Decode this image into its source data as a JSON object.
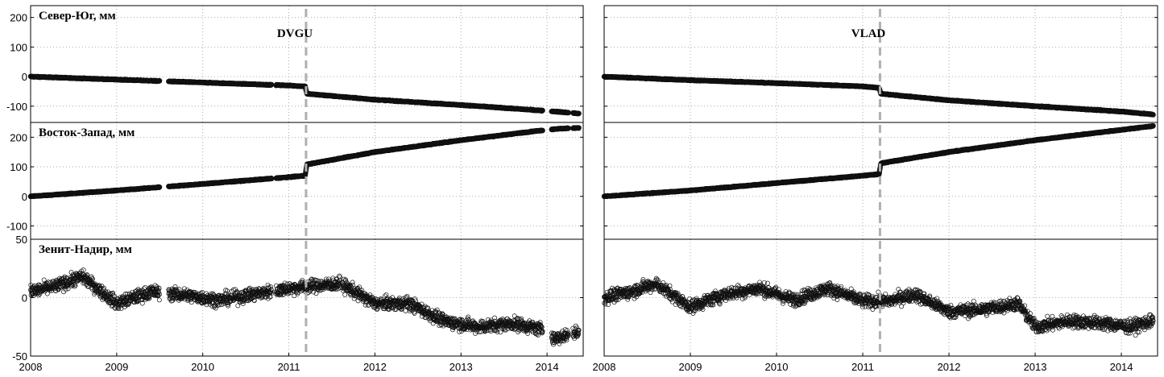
{
  "chart_data": {
    "type": "scatter",
    "x_ticks": [
      "2008",
      "2009",
      "2010",
      "2011",
      "2012",
      "2013",
      "2014"
    ],
    "xlim": [
      2008.0,
      2014.42
    ],
    "event_date": 2011.2,
    "panels": [
      {
        "key": "ns",
        "ylabel": "Север-Юг, мм",
        "yticks": [
          "200",
          "100",
          "0",
          "-100"
        ],
        "ylim": [
          -155,
          240
        ]
      },
      {
        "key": "ew",
        "ylabel": "Восток-Запад, мм",
        "yticks": [
          "200",
          "100",
          "0",
          "-100"
        ],
        "ylim": [
          -145,
          250
        ]
      },
      {
        "key": "up",
        "ylabel": "Зенит-Надир, мм",
        "yticks": [
          "50",
          "0",
          "-50"
        ],
        "ylim": [
          -50,
          50
        ]
      }
    ],
    "stations": [
      {
        "name": "DVGU",
        "ns": [
          [
            2008.0,
            0
          ],
          [
            2009.0,
            -10
          ],
          [
            2010.0,
            -20
          ],
          [
            2011.0,
            -30
          ],
          [
            2011.19,
            -33
          ],
          [
            2011.21,
            -58
          ],
          [
            2012.0,
            -78
          ],
          [
            2013.0,
            -96
          ],
          [
            2013.9,
            -114
          ],
          [
            2014.1,
            -118
          ],
          [
            2014.37,
            -125
          ]
        ],
        "ew": [
          [
            2008.0,
            0
          ],
          [
            2009.0,
            20
          ],
          [
            2010.0,
            42
          ],
          [
            2011.0,
            65
          ],
          [
            2011.19,
            70
          ],
          [
            2011.21,
            108
          ],
          [
            2012.0,
            150
          ],
          [
            2013.0,
            190
          ],
          [
            2013.9,
            222
          ],
          [
            2014.1,
            228
          ],
          [
            2014.37,
            232
          ]
        ],
        "up": [
          [
            2008.0,
            5
          ],
          [
            2008.3,
            10
          ],
          [
            2008.6,
            18
          ],
          [
            2009.0,
            -5
          ],
          [
            2009.4,
            5
          ],
          [
            2009.8,
            2
          ],
          [
            2010.2,
            -2
          ],
          [
            2010.6,
            3
          ],
          [
            2011.0,
            8
          ],
          [
            2011.3,
            10
          ],
          [
            2011.6,
            12
          ],
          [
            2012.0,
            -5
          ],
          [
            2012.4,
            -5
          ],
          [
            2012.8,
            -20
          ],
          [
            2013.2,
            -25
          ],
          [
            2013.6,
            -22
          ],
          [
            2014.0,
            -28
          ],
          [
            2014.1,
            -35
          ],
          [
            2014.3,
            -30
          ]
        ],
        "gaps": [
          [
            2009.5,
            2009.6
          ],
          [
            2010.8,
            2010.85
          ],
          [
            2011.6,
            2011.62
          ],
          [
            2013.95,
            2014.05
          ],
          [
            2014.25,
            2014.3
          ]
        ]
      },
      {
        "name": "VLAD",
        "ns": [
          [
            2008.0,
            0
          ],
          [
            2009.0,
            -12
          ],
          [
            2010.0,
            -22
          ],
          [
            2011.0,
            -33
          ],
          [
            2011.19,
            -38
          ],
          [
            2011.21,
            -58
          ],
          [
            2012.0,
            -80
          ],
          [
            2013.0,
            -100
          ],
          [
            2014.0,
            -118
          ],
          [
            2014.37,
            -128
          ]
        ],
        "ew": [
          [
            2008.0,
            0
          ],
          [
            2009.0,
            20
          ],
          [
            2010.0,
            45
          ],
          [
            2011.0,
            70
          ],
          [
            2011.19,
            75
          ],
          [
            2011.21,
            112
          ],
          [
            2012.0,
            150
          ],
          [
            2013.0,
            190
          ],
          [
            2014.0,
            225
          ],
          [
            2014.37,
            238
          ]
        ],
        "up": [
          [
            2008.0,
            0
          ],
          [
            2008.3,
            5
          ],
          [
            2008.6,
            12
          ],
          [
            2009.0,
            -8
          ],
          [
            2009.4,
            3
          ],
          [
            2009.8,
            8
          ],
          [
            2010.2,
            -2
          ],
          [
            2010.6,
            8
          ],
          [
            2011.0,
            -3
          ],
          [
            2011.3,
            -3
          ],
          [
            2011.6,
            3
          ],
          [
            2012.0,
            -12
          ],
          [
            2012.4,
            -10
          ],
          [
            2012.8,
            -5
          ],
          [
            2013.0,
            -25
          ],
          [
            2013.4,
            -20
          ],
          [
            2013.8,
            -22
          ],
          [
            2014.1,
            -25
          ],
          [
            2014.37,
            -20
          ]
        ],
        "gaps": []
      }
    ]
  }
}
